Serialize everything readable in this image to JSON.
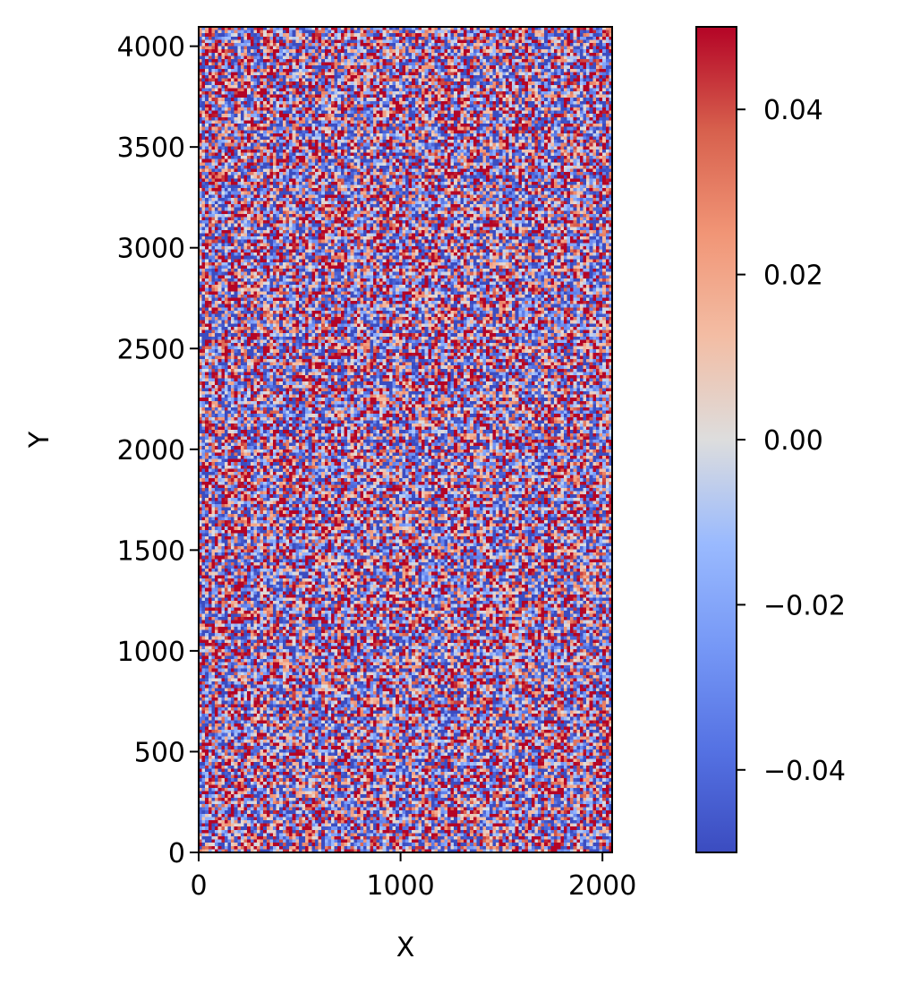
{
  "chart_data": {
    "type": "heatmap",
    "title": "",
    "xlabel": "X",
    "ylabel": "Y",
    "xlim": [
      0,
      2048
    ],
    "ylim": [
      0,
      4096
    ],
    "xticks": [
      0,
      1000,
      2000
    ],
    "xtick_labels": [
      "0",
      "1000",
      "2000"
    ],
    "yticks": [
      0,
      500,
      1000,
      1500,
      2000,
      2500,
      3000,
      3500,
      4000
    ],
    "ytick_labels": [
      "0",
      "500",
      "1000",
      "1500",
      "2000",
      "2500",
      "3000",
      "3500",
      "4000"
    ],
    "colormap": "coolwarm",
    "grid": false,
    "values_note_grid": {
      "nx": 128,
      "ny": 256
    },
    "value_range": [
      -0.05,
      0.05
    ],
    "value_distribution": "random noise, approximately uniform in [-0.05, 0.05]",
    "colorbar": {
      "vmin": -0.05,
      "vmax": 0.05,
      "ticks": [
        -0.04,
        -0.02,
        0.0,
        0.02,
        0.04
      ],
      "tick_labels": [
        "−0.04",
        "−0.02",
        "0.00",
        "0.02",
        "0.04"
      ],
      "placement": "right"
    }
  }
}
